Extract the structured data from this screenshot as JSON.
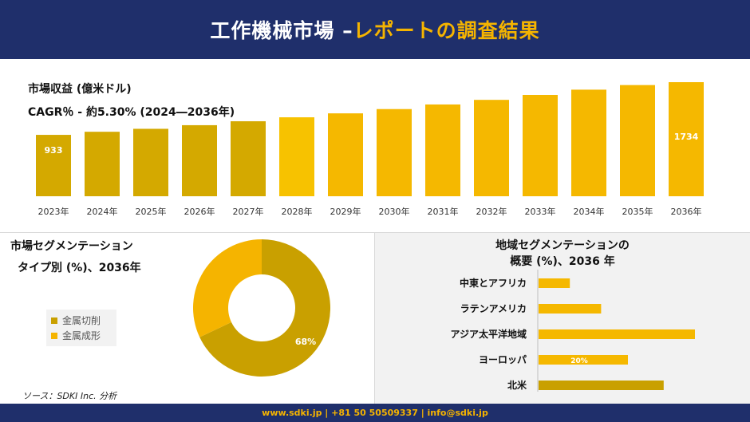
{
  "header": {
    "title_part1": "工作機械市場 –",
    "title_part2": "レポートの調査結果"
  },
  "revenue": {
    "label": "市場収益 (億米ドル)",
    "cagr": "CAGR％ - 約5.30% (2024―2036年)"
  },
  "segment": {
    "title_line1": "市場セグメンテーション",
    "title_line2": "タイプ別 (%)、2036年"
  },
  "region": {
    "title_line1": "地域セグメンテーションの",
    "title_line2": "概要 (%)、2036 年"
  },
  "source": "ソース：SDKI Inc. 分析",
  "footer": "www.sdki.jp | +81 50 50509337 | info@sdki.jp",
  "colors": {
    "navy": "#1f2f6b",
    "gold": "#f5b400",
    "dark_gold": "#c9a000",
    "bright_gold": "#f7c200"
  },
  "chart_data": [
    {
      "type": "bar",
      "categories": [
        "2023年",
        "2024年",
        "2025年",
        "2026年",
        "2027年",
        "2028年",
        "2029年",
        "2030年",
        "2031年",
        "2032年",
        "2033年",
        "2034年",
        "2035年",
        "2036年"
      ],
      "values": [
        933,
        980,
        1025,
        1080,
        1140,
        1200,
        1260,
        1325,
        1395,
        1465,
        1540,
        1620,
        1690,
        1734
      ],
      "data_labels": {
        "0": "933",
        "13": "1734"
      },
      "ylim": [
        0,
        1734
      ]
    },
    {
      "type": "pie",
      "labels": [
        "金属切削",
        "金属成形"
      ],
      "values": [
        68,
        32
      ],
      "data_labels": [
        "68%",
        ""
      ]
    },
    {
      "type": "bar",
      "orientation": "horizontal",
      "categories": [
        "中東とアフリカ",
        "ラテンアメリカ",
        "アジア太平洋地域",
        "ヨーロッパ",
        "北米"
      ],
      "values": [
        7,
        14,
        35,
        20,
        28
      ],
      "data_labels": [
        "",
        "",
        "",
        "20%",
        ""
      ],
      "xlim": [
        0,
        35
      ]
    }
  ]
}
